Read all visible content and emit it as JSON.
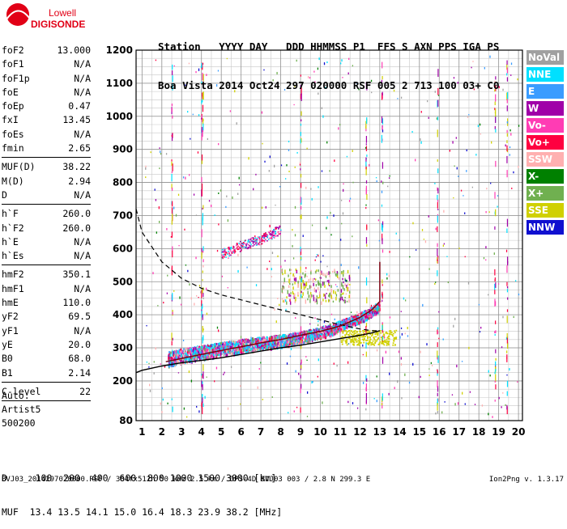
{
  "logo": {
    "line1": "Lowell",
    "line2": "DIGISONDE"
  },
  "header": {
    "labels": [
      "Station",
      "YYYY",
      "DAY",
      "DDD",
      "HHMMSS",
      "P1",
      "FFS",
      "S",
      "AXN",
      "PPS",
      "IGA",
      "PS"
    ],
    "values": [
      "Boa Vista",
      "2014",
      "Oct24",
      "297",
      "020000",
      "RSF",
      "005",
      "2",
      "713",
      "100",
      "03+",
      "C0"
    ]
  },
  "params": {
    "group1": [
      {
        "name": "foF2",
        "value": "13.000"
      },
      {
        "name": "foF1",
        "value": "N/A"
      },
      {
        "name": "foF1p",
        "value": "N/A"
      },
      {
        "name": "foE",
        "value": "N/A"
      },
      {
        "name": "foEp",
        "value": "0.47"
      },
      {
        "name": "fxI",
        "value": "13.45"
      },
      {
        "name": "foEs",
        "value": "N/A"
      },
      {
        "name": "fmin",
        "value": "2.65"
      }
    ],
    "group2": [
      {
        "name": "MUF(D)",
        "value": "38.22"
      },
      {
        "name": "M(D)",
        "value": "2.94"
      },
      {
        "name": "D",
        "value": "N/A"
      }
    ],
    "group3": [
      {
        "name": "h`F",
        "value": "260.0"
      },
      {
        "name": "h`F2",
        "value": "260.0"
      },
      {
        "name": "h`E",
        "value": "N/A"
      },
      {
        "name": "h`Es",
        "value": "N/A"
      }
    ],
    "group4": [
      {
        "name": "hmF2",
        "value": "350.1"
      },
      {
        "name": "hmF1",
        "value": "N/A"
      },
      {
        "name": "hmE",
        "value": "110.0"
      },
      {
        "name": "yF2",
        "value": "69.5"
      },
      {
        "name": "yF1",
        "value": "N/A"
      },
      {
        "name": "yE",
        "value": "20.0"
      },
      {
        "name": "B0",
        "value": "68.0"
      },
      {
        "name": "B1",
        "value": "2.14"
      }
    ],
    "group5": [
      {
        "name": "C-level",
        "value": "22"
      }
    ]
  },
  "auto": {
    "line1": "Auto:",
    "line2": "Artist5",
    "line3": "500200"
  },
  "legend": [
    {
      "label": "NoVal",
      "color": "#a0a0a0"
    },
    {
      "label": "NNE",
      "color": "#00e0ff"
    },
    {
      "label": "E",
      "color": "#3a9cff"
    },
    {
      "label": "W",
      "color": "#a000a8"
    },
    {
      "label": "Vo-",
      "color": "#ff3cb4"
    },
    {
      "label": "Vo+",
      "color": "#ff0040"
    },
    {
      "label": "SSW",
      "color": "#ffb0b0"
    },
    {
      "label": "X-",
      "color": "#008000"
    },
    {
      "label": "X+",
      "color": "#70b050"
    },
    {
      "label": "SSE",
      "color": "#d0d000"
    },
    {
      "label": "NNW",
      "color": "#1010d0"
    }
  ],
  "muf_table": {
    "row1": "D     100  200  400  600  800 1000 1500 3000 [km]",
    "row2": "MUF  13.4 13.5 14.1 15.0 16.4 18.3 23.9 38.2 [MHz]"
  },
  "footer": {
    "left": "BVJ03_2014297020000.RSF / 384fx512h 50 kHz 2.5 km / DPS-4D BVJ03 003 / 2.8 N 299.3 E",
    "right": "Ion2Png v. 1.3.17"
  },
  "chart_data": {
    "type": "scatter",
    "x_ticks": [
      1,
      2,
      3,
      4,
      5,
      6,
      7,
      8,
      9,
      10,
      11,
      12,
      13,
      14,
      15,
      16,
      17,
      18,
      19,
      20
    ],
    "y_ticks": [
      80,
      200,
      300,
      400,
      500,
      600,
      700,
      800,
      900,
      1000,
      1100,
      1200
    ],
    "xlim": [
      0.7,
      20.2
    ],
    "ylim": [
      80,
      1200
    ],
    "grid": true,
    "series": [
      {
        "name": "F2 trace",
        "kind": "dense-band",
        "x": [
          2.3,
          3,
          4,
          5,
          6,
          7,
          8,
          9,
          10,
          11,
          12,
          12.5,
          13
        ],
        "y": [
          270,
          280,
          290,
          300,
          310,
          318,
          325,
          335,
          350,
          370,
          395,
          410,
          430
        ]
      },
      {
        "name": "multihop",
        "kind": "dense-band",
        "x": [
          5,
          6,
          7,
          8
        ],
        "y": [
          585,
          610,
          630,
          660
        ]
      }
    ],
    "profile_solid": {
      "x": [
        0.7,
        1,
        2,
        3,
        4,
        5,
        6,
        7,
        8,
        9,
        10,
        11,
        12,
        12.6,
        13
      ],
      "y": [
        225,
        232,
        245,
        255,
        262,
        270,
        280,
        290,
        300,
        308,
        318,
        328,
        338,
        345,
        352
      ]
    },
    "profile_dashed": {
      "x": [
        0.7,
        1,
        2,
        3,
        4,
        5,
        6,
        7,
        8,
        9,
        10,
        11,
        12,
        12.6,
        13
      ],
      "y": [
        720,
        650,
        560,
        510,
        480,
        460,
        445,
        430,
        415,
        400,
        385,
        370,
        357,
        352,
        352
      ]
    },
    "trace_curve": {
      "x": [
        2.2,
        3,
        4,
        5,
        6,
        7,
        8,
        9,
        10,
        11,
        12,
        12.6,
        13,
        13,
        13
      ],
      "y": [
        258,
        268,
        280,
        292,
        303,
        315,
        325,
        338,
        350,
        366,
        392,
        415,
        440,
        500,
        560
      ]
    }
  }
}
